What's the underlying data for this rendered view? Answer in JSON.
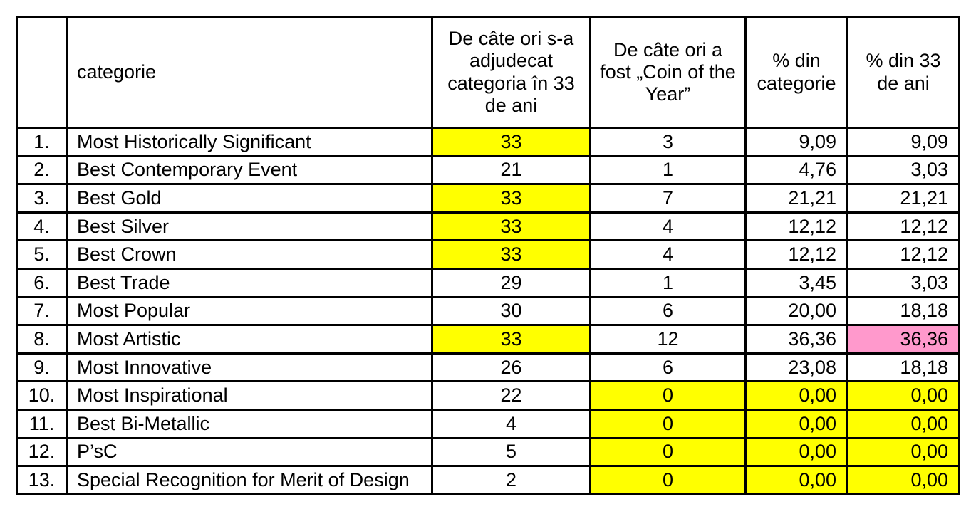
{
  "colors": {
    "highlight_yellow": "#FFFF00",
    "highlight_pink": "#FF99CC",
    "border": "#000000"
  },
  "table": {
    "headers": {
      "category": "categorie",
      "wins": "De câte ori s-a adjudecat categoria în 33 de ani",
      "coty": "De câte ori a fost „Coin of the Year”",
      "pct_category": "% din categorie",
      "pct_years": "% din 33 de ani"
    },
    "rows": [
      {
        "num": "1.",
        "category": "Most Historically Significant",
        "wins": "33",
        "wins_hl": "yellow",
        "coty": "3",
        "coty_hl": null,
        "pct_category": "9,09",
        "pct_category_hl": null,
        "pct_years": "9,09",
        "pct_years_hl": null
      },
      {
        "num": "2.",
        "category": "Best Contemporary Event",
        "wins": "21",
        "wins_hl": null,
        "coty": "1",
        "coty_hl": null,
        "pct_category": "4,76",
        "pct_category_hl": null,
        "pct_years": "3,03",
        "pct_years_hl": null
      },
      {
        "num": "3.",
        "category": "Best Gold",
        "wins": "33",
        "wins_hl": "yellow",
        "coty": "7",
        "coty_hl": null,
        "pct_category": "21,21",
        "pct_category_hl": null,
        "pct_years": "21,21",
        "pct_years_hl": null
      },
      {
        "num": "4.",
        "category": "Best Silver",
        "wins": "33",
        "wins_hl": "yellow",
        "coty": "4",
        "coty_hl": null,
        "pct_category": "12,12",
        "pct_category_hl": null,
        "pct_years": "12,12",
        "pct_years_hl": null
      },
      {
        "num": "5.",
        "category": "Best Crown",
        "wins": "33",
        "wins_hl": "yellow",
        "coty": "4",
        "coty_hl": null,
        "pct_category": "12,12",
        "pct_category_hl": null,
        "pct_years": "12,12",
        "pct_years_hl": null
      },
      {
        "num": "6.",
        "category": "Best Trade",
        "wins": "29",
        "wins_hl": null,
        "coty": "1",
        "coty_hl": null,
        "pct_category": "3,45",
        "pct_category_hl": null,
        "pct_years": "3,03",
        "pct_years_hl": null
      },
      {
        "num": "7.",
        "category": "Most Popular",
        "wins": "30",
        "wins_hl": null,
        "coty": "6",
        "coty_hl": null,
        "pct_category": "20,00",
        "pct_category_hl": null,
        "pct_years": "18,18",
        "pct_years_hl": null
      },
      {
        "num": "8.",
        "category": "Most Artistic",
        "wins": "33",
        "wins_hl": "yellow",
        "coty": "12",
        "coty_hl": null,
        "pct_category": "36,36",
        "pct_category_hl": null,
        "pct_years": "36,36",
        "pct_years_hl": "pink"
      },
      {
        "num": "9.",
        "category": "Most Innovative",
        "wins": "26",
        "wins_hl": null,
        "coty": "6",
        "coty_hl": null,
        "pct_category": "23,08",
        "pct_category_hl": null,
        "pct_years": "18,18",
        "pct_years_hl": null
      },
      {
        "num": "10.",
        "category": "Most Inspirational",
        "wins": "22",
        "wins_hl": null,
        "coty": "0",
        "coty_hl": "yellow",
        "pct_category": "0,00",
        "pct_category_hl": "yellow",
        "pct_years": "0,00",
        "pct_years_hl": "yellow"
      },
      {
        "num": "11.",
        "category": "Best Bi-Metallic",
        "wins": "4",
        "wins_hl": null,
        "coty": "0",
        "coty_hl": "yellow",
        "pct_category": "0,00",
        "pct_category_hl": "yellow",
        "pct_years": "0,00",
        "pct_years_hl": "yellow"
      },
      {
        "num": "12.",
        "category": "P’sC",
        "wins": "5",
        "wins_hl": null,
        "coty": "0",
        "coty_hl": "yellow",
        "pct_category": "0,00",
        "pct_category_hl": "yellow",
        "pct_years": "0,00",
        "pct_years_hl": "yellow"
      },
      {
        "num": "13.",
        "category": "Special Recognition for Merit of Design",
        "wins": "2",
        "wins_hl": null,
        "coty": "0",
        "coty_hl": "yellow",
        "pct_category": "0,00",
        "pct_category_hl": "yellow",
        "pct_years": "0,00",
        "pct_years_hl": "yellow"
      }
    ]
  }
}
